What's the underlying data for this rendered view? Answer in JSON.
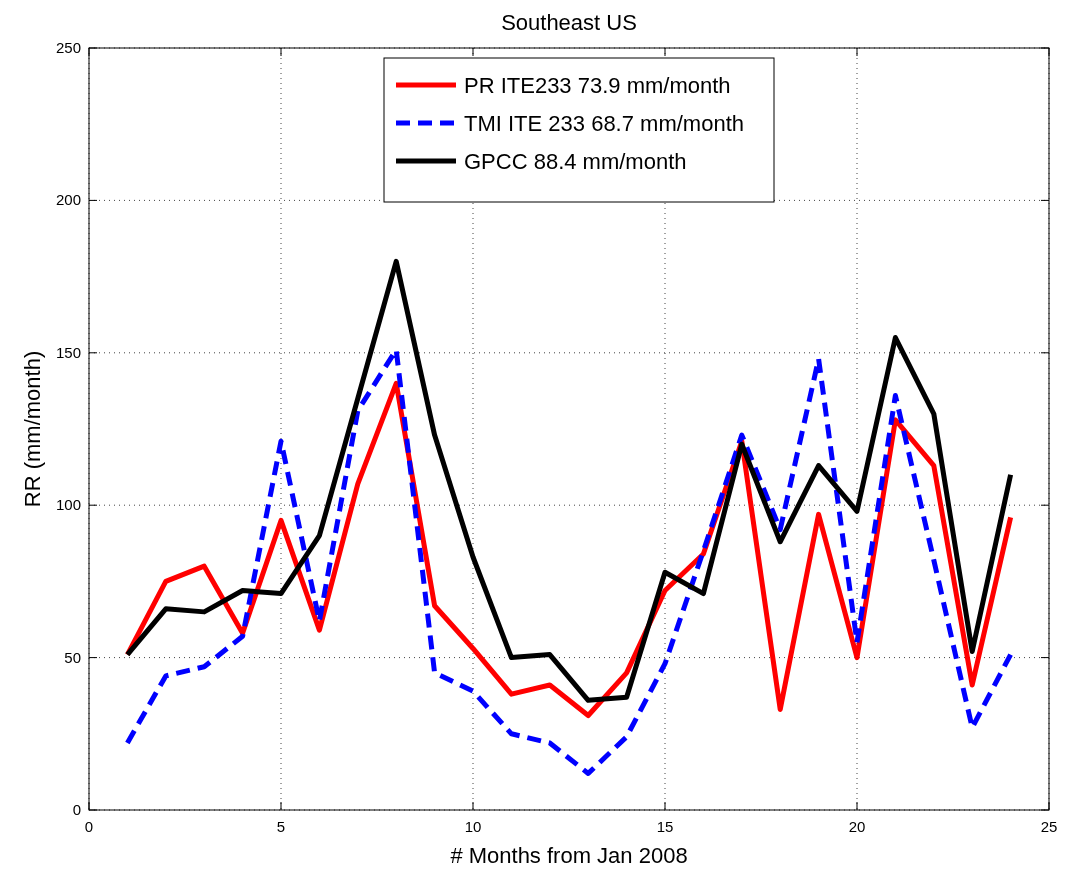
{
  "chart_data": {
    "type": "line",
    "title": "Southeast US",
    "xlabel": "# Months from Jan 2008",
    "ylabel": "RR (mm/month)",
    "x": [
      1,
      2,
      3,
      4,
      5,
      6,
      7,
      8,
      9,
      10,
      11,
      12,
      13,
      14,
      15,
      16,
      17,
      18,
      19,
      20,
      21,
      22,
      23,
      24
    ],
    "series": [
      {
        "name": "PR ITE233 73.9 mm/month",
        "color": "#ff0000",
        "line_style": "solid",
        "values": [
          51,
          75,
          80,
          58,
          95,
          59,
          107,
          140,
          67,
          53,
          38,
          41,
          31,
          45,
          72,
          84,
          121,
          33,
          97,
          50,
          128,
          113,
          41,
          96
        ]
      },
      {
        "name": "TMI ITE 233 68.7 mm/month",
        "color": "#0000ff",
        "line_style": "dashed",
        "values": [
          22,
          44,
          47,
          57,
          121,
          62,
          131,
          151,
          45,
          39,
          25,
          22,
          12,
          24,
          48,
          85,
          123,
          92,
          148,
          55,
          136,
          82,
          27,
          51
        ]
      },
      {
        "name": "GPCC 88.4 mm/month",
        "color": "#000000",
        "line_style": "solid",
        "values": [
          51,
          66,
          65,
          72,
          71,
          90,
          135,
          180,
          123,
          83,
          50,
          51,
          36,
          37,
          78,
          71,
          120,
          88,
          113,
          98,
          155,
          130,
          52,
          110
        ]
      }
    ],
    "xlim": [
      0,
      25
    ],
    "xticks": [
      0,
      5,
      10,
      15,
      20,
      25
    ],
    "ylim": [
      0,
      250
    ],
    "yticks": [
      0,
      50,
      100,
      150,
      200,
      250
    ],
    "grid": true,
    "legend": "top",
    "marker": "none"
  }
}
